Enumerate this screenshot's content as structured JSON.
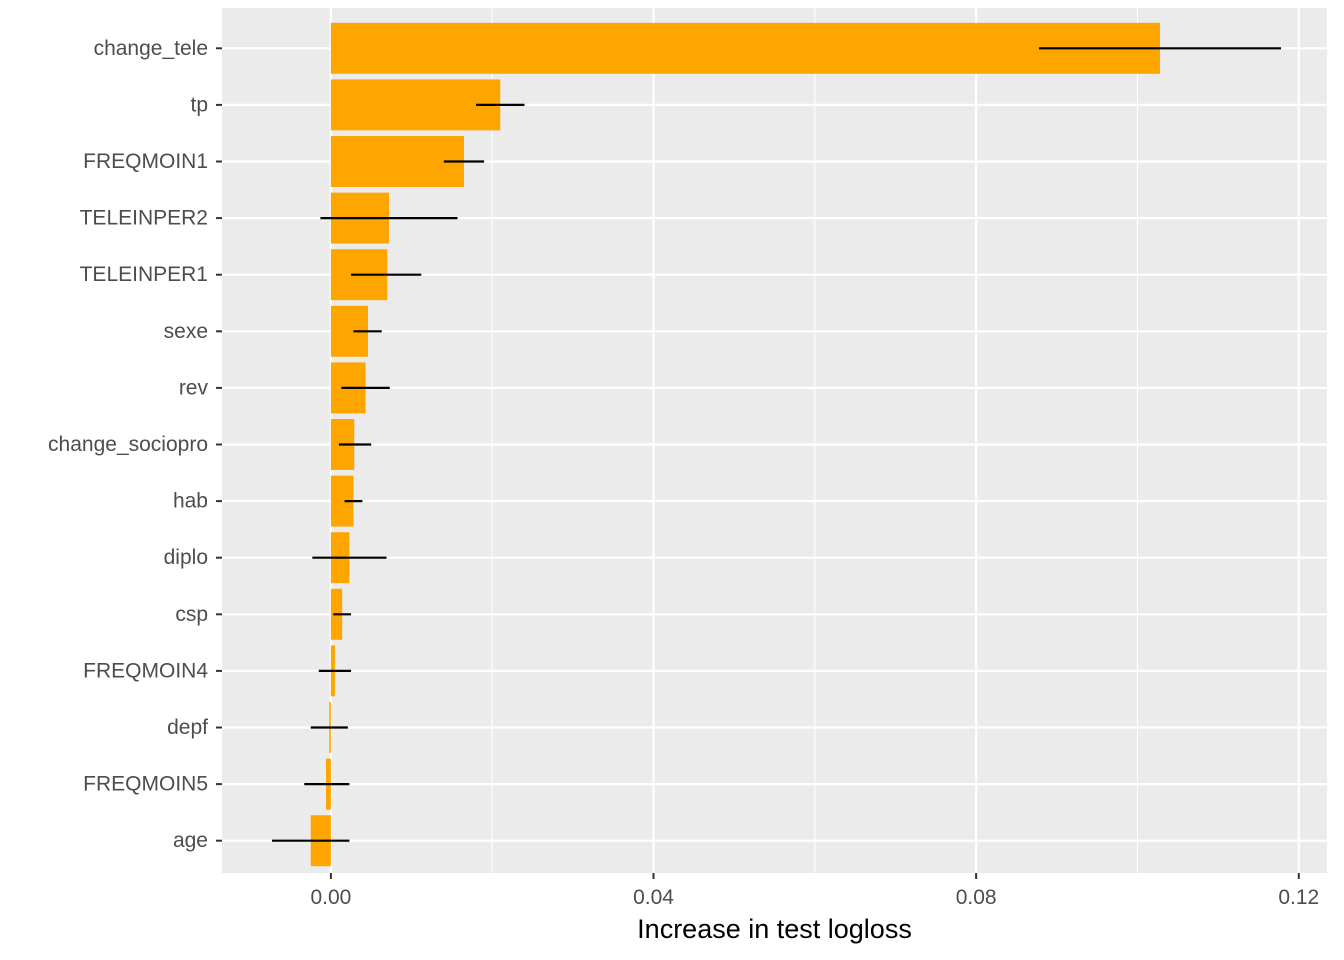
{
  "chart_data": {
    "type": "bar",
    "orientation": "horizontal",
    "title": "",
    "xlabel": "Increase in test logloss",
    "ylabel": "",
    "xlim": [
      -0.0135,
      0.1235
    ],
    "x_ticks": [
      0.0,
      0.04,
      0.08,
      0.12
    ],
    "x_tick_labels": [
      "0.00",
      "0.04",
      "0.08",
      "0.12"
    ],
    "grid": true,
    "legend": "none",
    "colors": {
      "bar": "#FFA500",
      "error_bar": "#000000",
      "panel_background": "#EBEBEB",
      "grid": "#FFFFFF",
      "tick_label": "#4D4D4D",
      "axis_title": "#000000"
    },
    "categories": [
      "change_tele",
      "tp",
      "FREQMOIN1",
      "TELEINPER2",
      "TELEINPER1",
      "sexe",
      "rev",
      "change_sociopro",
      "hab",
      "diplo",
      "csp",
      "FREQMOIN4",
      "depf",
      "FREQMOIN5",
      "age"
    ],
    "values": [
      0.1028,
      0.021,
      0.0165,
      0.0072,
      0.007,
      0.0046,
      0.0043,
      0.0029,
      0.0028,
      0.0023,
      0.0014,
      0.0005,
      -0.0002,
      -0.0006,
      -0.0025
    ],
    "error_low": [
      0.0878,
      0.018,
      0.014,
      -0.0013,
      0.0025,
      0.0028,
      0.0013,
      0.001,
      0.0017,
      -0.0023,
      0.0003,
      -0.0015,
      -0.0025,
      -0.0033,
      -0.0073
    ],
    "error_high": [
      0.1178,
      0.024,
      0.019,
      0.0157,
      0.0112,
      0.0063,
      0.0073,
      0.005,
      0.0039,
      0.0069,
      0.0025,
      0.0025,
      0.0021,
      0.0023,
      0.0023
    ]
  }
}
